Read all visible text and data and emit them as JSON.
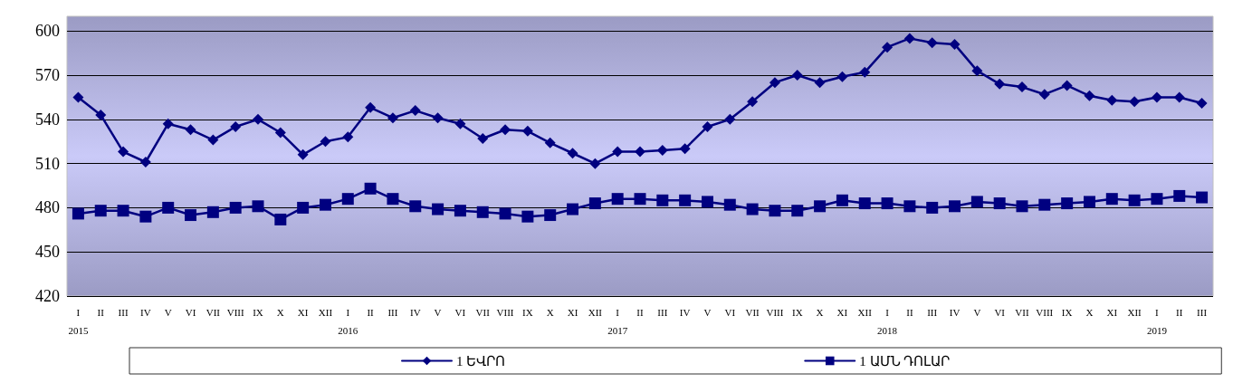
{
  "chart_data": {
    "type": "line",
    "categories": [
      "I\n2015",
      "II",
      "III",
      "IV",
      "V",
      "VI",
      "VII",
      "VIII",
      "IX",
      "X",
      "XI",
      "XII",
      "I\n2016",
      "II",
      "III",
      "IV",
      "V",
      "VI",
      "VII",
      "VIII",
      "IX",
      "X",
      "XI",
      "XII",
      "I\n2017",
      "II",
      "III",
      "IV",
      "V",
      "VI",
      "VII",
      "VIII",
      "IX",
      "X",
      "XI",
      "XII",
      "I\n2018",
      "II",
      "III",
      "IV",
      "V",
      "VI",
      "VII",
      "VIII",
      "IX",
      "X",
      "XI",
      "XII",
      "I\n2019",
      "II",
      "III"
    ],
    "series": [
      {
        "name": "1 ԵՎՐՈ",
        "color": "#000080",
        "marker": "diamond",
        "values": [
          555,
          543,
          518,
          511,
          537,
          533,
          526,
          535,
          540,
          531,
          516,
          525,
          528,
          548,
          541,
          546,
          541,
          537,
          527,
          533,
          532,
          524,
          517,
          510,
          518,
          518,
          519,
          520,
          535,
          540,
          552,
          565,
          570,
          565,
          569,
          572,
          589,
          595,
          592,
          591,
          573,
          564,
          562,
          557,
          563,
          556,
          553,
          552,
          555,
          555,
          551
        ]
      },
      {
        "name": "1 ԱՄՆ ԴՈԼԱՐ",
        "color": "#000080",
        "marker": "square",
        "values": [
          476,
          478,
          478,
          474,
          480,
          475,
          477,
          480,
          481,
          472,
          480,
          482,
          486,
          493,
          486,
          481,
          479,
          478,
          477,
          476,
          474,
          475,
          479,
          483,
          486,
          486,
          485,
          485,
          484,
          482,
          479,
          478,
          478,
          481,
          485,
          483,
          483,
          481,
          480,
          481,
          484,
          483,
          481,
          482,
          483,
          484,
          486,
          485,
          486,
          488,
          487
        ]
      }
    ],
    "ylim": [
      420,
      610
    ],
    "yticks": [
      420,
      450,
      480,
      510,
      540,
      570,
      600
    ],
    "grid": "y",
    "legend": "bottom",
    "line_style": "solid"
  }
}
